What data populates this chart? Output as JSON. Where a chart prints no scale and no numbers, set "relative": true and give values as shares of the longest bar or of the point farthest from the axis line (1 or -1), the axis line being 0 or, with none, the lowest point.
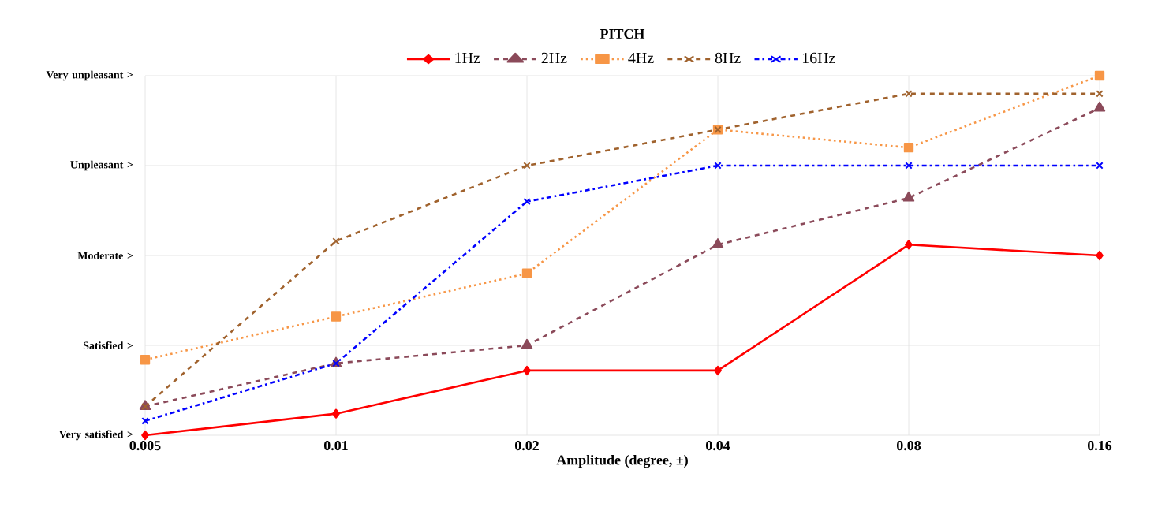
{
  "chart_data": {
    "type": "line",
    "title": "PITCH",
    "xlabel": "Amplitude (degree, ±)",
    "categories": [
      "0.005",
      "0.01",
      "0.02",
      "0.04",
      "0.08",
      "0.16"
    ],
    "relative": true,
    "annotations": [
      "Very satisfied >",
      "Satisfied >",
      "Moderate >",
      "Unpleasant >",
      "Very unpleasant >"
    ],
    "grid": true,
    "legend": "top",
    "series": [
      {
        "name": "1Hz",
        "color": "#ff0000",
        "marker": "diamond",
        "line_style": "solid",
        "values": [
          0,
          0.06,
          0.18,
          0.18,
          0.53,
          0.5
        ]
      },
      {
        "name": "2Hz",
        "color": "#8b4a5a",
        "marker": "triangle",
        "line_style": "dashed",
        "values": [
          0.08,
          0.2,
          0.25,
          0.53,
          0.66,
          0.91
        ]
      },
      {
        "name": "4Hz",
        "color": "#f79646",
        "marker": "square",
        "line_style": "dotted",
        "values": [
          0.21,
          0.33,
          0.45,
          0.85,
          0.8,
          1
        ]
      },
      {
        "name": "8Hz",
        "color": "#a0622d",
        "marker": "cross",
        "line_style": "dashed",
        "values": [
          0.08,
          0.54,
          0.75,
          0.85,
          0.95,
          0.95
        ]
      },
      {
        "name": "16Hz",
        "color": "#0000ff",
        "marker": "cross",
        "line_style": "dashdot",
        "values": [
          0.04,
          0.2,
          0.65,
          0.75,
          0.75,
          0.75
        ]
      }
    ]
  }
}
